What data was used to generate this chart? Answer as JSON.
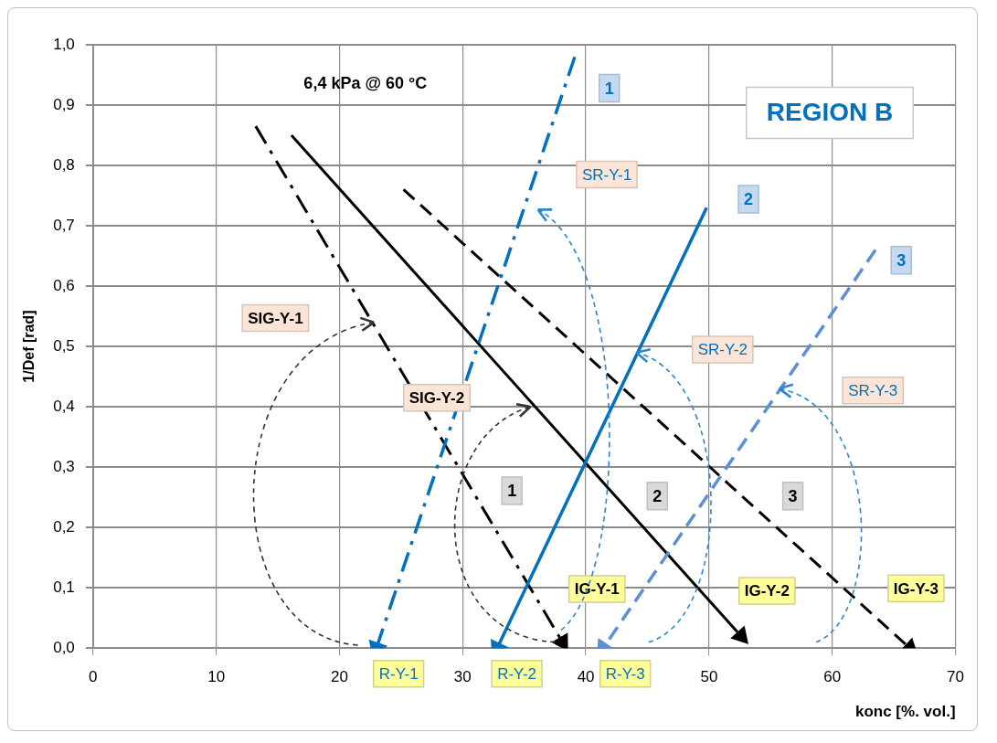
{
  "chart_data": {
    "type": "line",
    "xlabel": "konc [%. vol.]",
    "ylabel": "1/Def [rad]",
    "xlim": [
      0,
      70
    ],
    "xticks": [
      0,
      10,
      20,
      30,
      40,
      50,
      60,
      70
    ],
    "ylim": [
      0,
      1
    ],
    "yticks": [
      {
        "value": 0,
        "label": "0,0"
      },
      {
        "value": 0.1,
        "label": "0,1"
      },
      {
        "value": 0.2,
        "label": "0,2"
      },
      {
        "value": 0.3,
        "label": "0,3"
      },
      {
        "value": 0.4,
        "label": "0,4"
      },
      {
        "value": 0.5,
        "label": "0,5"
      },
      {
        "value": 0.6,
        "label": "0,6"
      },
      {
        "value": 0.7,
        "label": "0,7"
      },
      {
        "value": 0.8,
        "label": "0,8"
      },
      {
        "value": 0.9,
        "label": "0,9"
      },
      {
        "value": 1,
        "label": "1,0"
      }
    ],
    "grid": true,
    "legend": false,
    "marker": "triangle",
    "series": [
      {
        "color": "#0070c0",
        "line_style": "dashdot",
        "x": [
          39.1,
          23.0
        ],
        "values": [
          0.98,
          0.0
        ]
      },
      {
        "color": "#0070c0",
        "line_style": "solid",
        "x": [
          49.8,
          32.8
        ],
        "values": [
          0.73,
          0.0
        ]
      },
      {
        "color": "#5b8fd6",
        "line_style": "dashed",
        "x": [
          63.5,
          41.4
        ],
        "values": [
          0.66,
          0.0
        ]
      },
      {
        "color": "#000000",
        "line_style": "dashdot",
        "x": [
          13.2,
          38.1
        ],
        "values": [
          0.865,
          0.01
        ]
      },
      {
        "color": "#000000",
        "line_style": "solid",
        "x": [
          16.1,
          52.6
        ],
        "values": [
          0.85,
          0.02
        ]
      },
      {
        "color": "#000000",
        "line_style": "dashed",
        "x": [
          25.2,
          66.3
        ],
        "values": [
          0.76,
          0.0
        ]
      }
    ],
    "annotations": [
      "6,4 kPa @ 60 °C",
      "REGION B",
      "1",
      "2",
      "3",
      "SR-Y-1",
      "SR-Y-2",
      "SR-Y-3",
      "SIG-Y-1",
      "SIG-Y-2",
      "1",
      "2",
      "3",
      "IG-Y-1",
      "IG-Y-2",
      "IG-Y-3",
      "R-Y-1",
      "R-Y-2",
      "R-Y-3"
    ]
  }
}
